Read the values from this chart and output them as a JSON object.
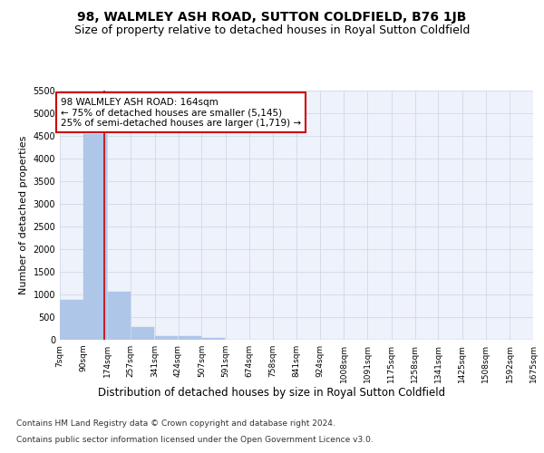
{
  "title": "98, WALMLEY ASH ROAD, SUTTON COLDFIELD, B76 1JB",
  "subtitle": "Size of property relative to detached houses in Royal Sutton Coldfield",
  "xlabel": "Distribution of detached houses by size in Royal Sutton Coldfield",
  "ylabel": "Number of detached properties",
  "footnote1": "Contains HM Land Registry data © Crown copyright and database right 2024.",
  "footnote2": "Contains public sector information licensed under the Open Government Licence v3.0.",
  "annotation_line1": "98 WALMLEY ASH ROAD: 164sqm",
  "annotation_line2": "← 75% of detached houses are smaller (5,145)",
  "annotation_line3": "25% of semi-detached houses are larger (1,719) →",
  "bin_edges": [
    7,
    90,
    174,
    257,
    341,
    424,
    507,
    591,
    674,
    758,
    841,
    924,
    1008,
    1091,
    1175,
    1258,
    1341,
    1425,
    1508,
    1592,
    1675
  ],
  "bar_heights": [
    880,
    4550,
    1060,
    275,
    90,
    80,
    50,
    0,
    0,
    0,
    0,
    0,
    0,
    0,
    0,
    0,
    0,
    0,
    0,
    0
  ],
  "bar_color": "#aec6e8",
  "bar_edgecolor": "#aec6e8",
  "vline_x": 164,
  "vline_color": "#cc0000",
  "annotation_box_edgecolor": "#cc0000",
  "annotation_box_facecolor": "#ffffff",
  "ylim": [
    0,
    5500
  ],
  "yticks": [
    0,
    500,
    1000,
    1500,
    2000,
    2500,
    3000,
    3500,
    4000,
    4500,
    5000,
    5500
  ],
  "grid_color": "#d0d8e8",
  "background_color": "#eef2fb",
  "fig_background": "#ffffff",
  "title_fontsize": 10,
  "subtitle_fontsize": 9,
  "xlabel_fontsize": 8.5,
  "ylabel_fontsize": 8,
  "tick_fontsize": 7,
  "annotation_fontsize": 7.5,
  "footnote_fontsize": 6.5
}
